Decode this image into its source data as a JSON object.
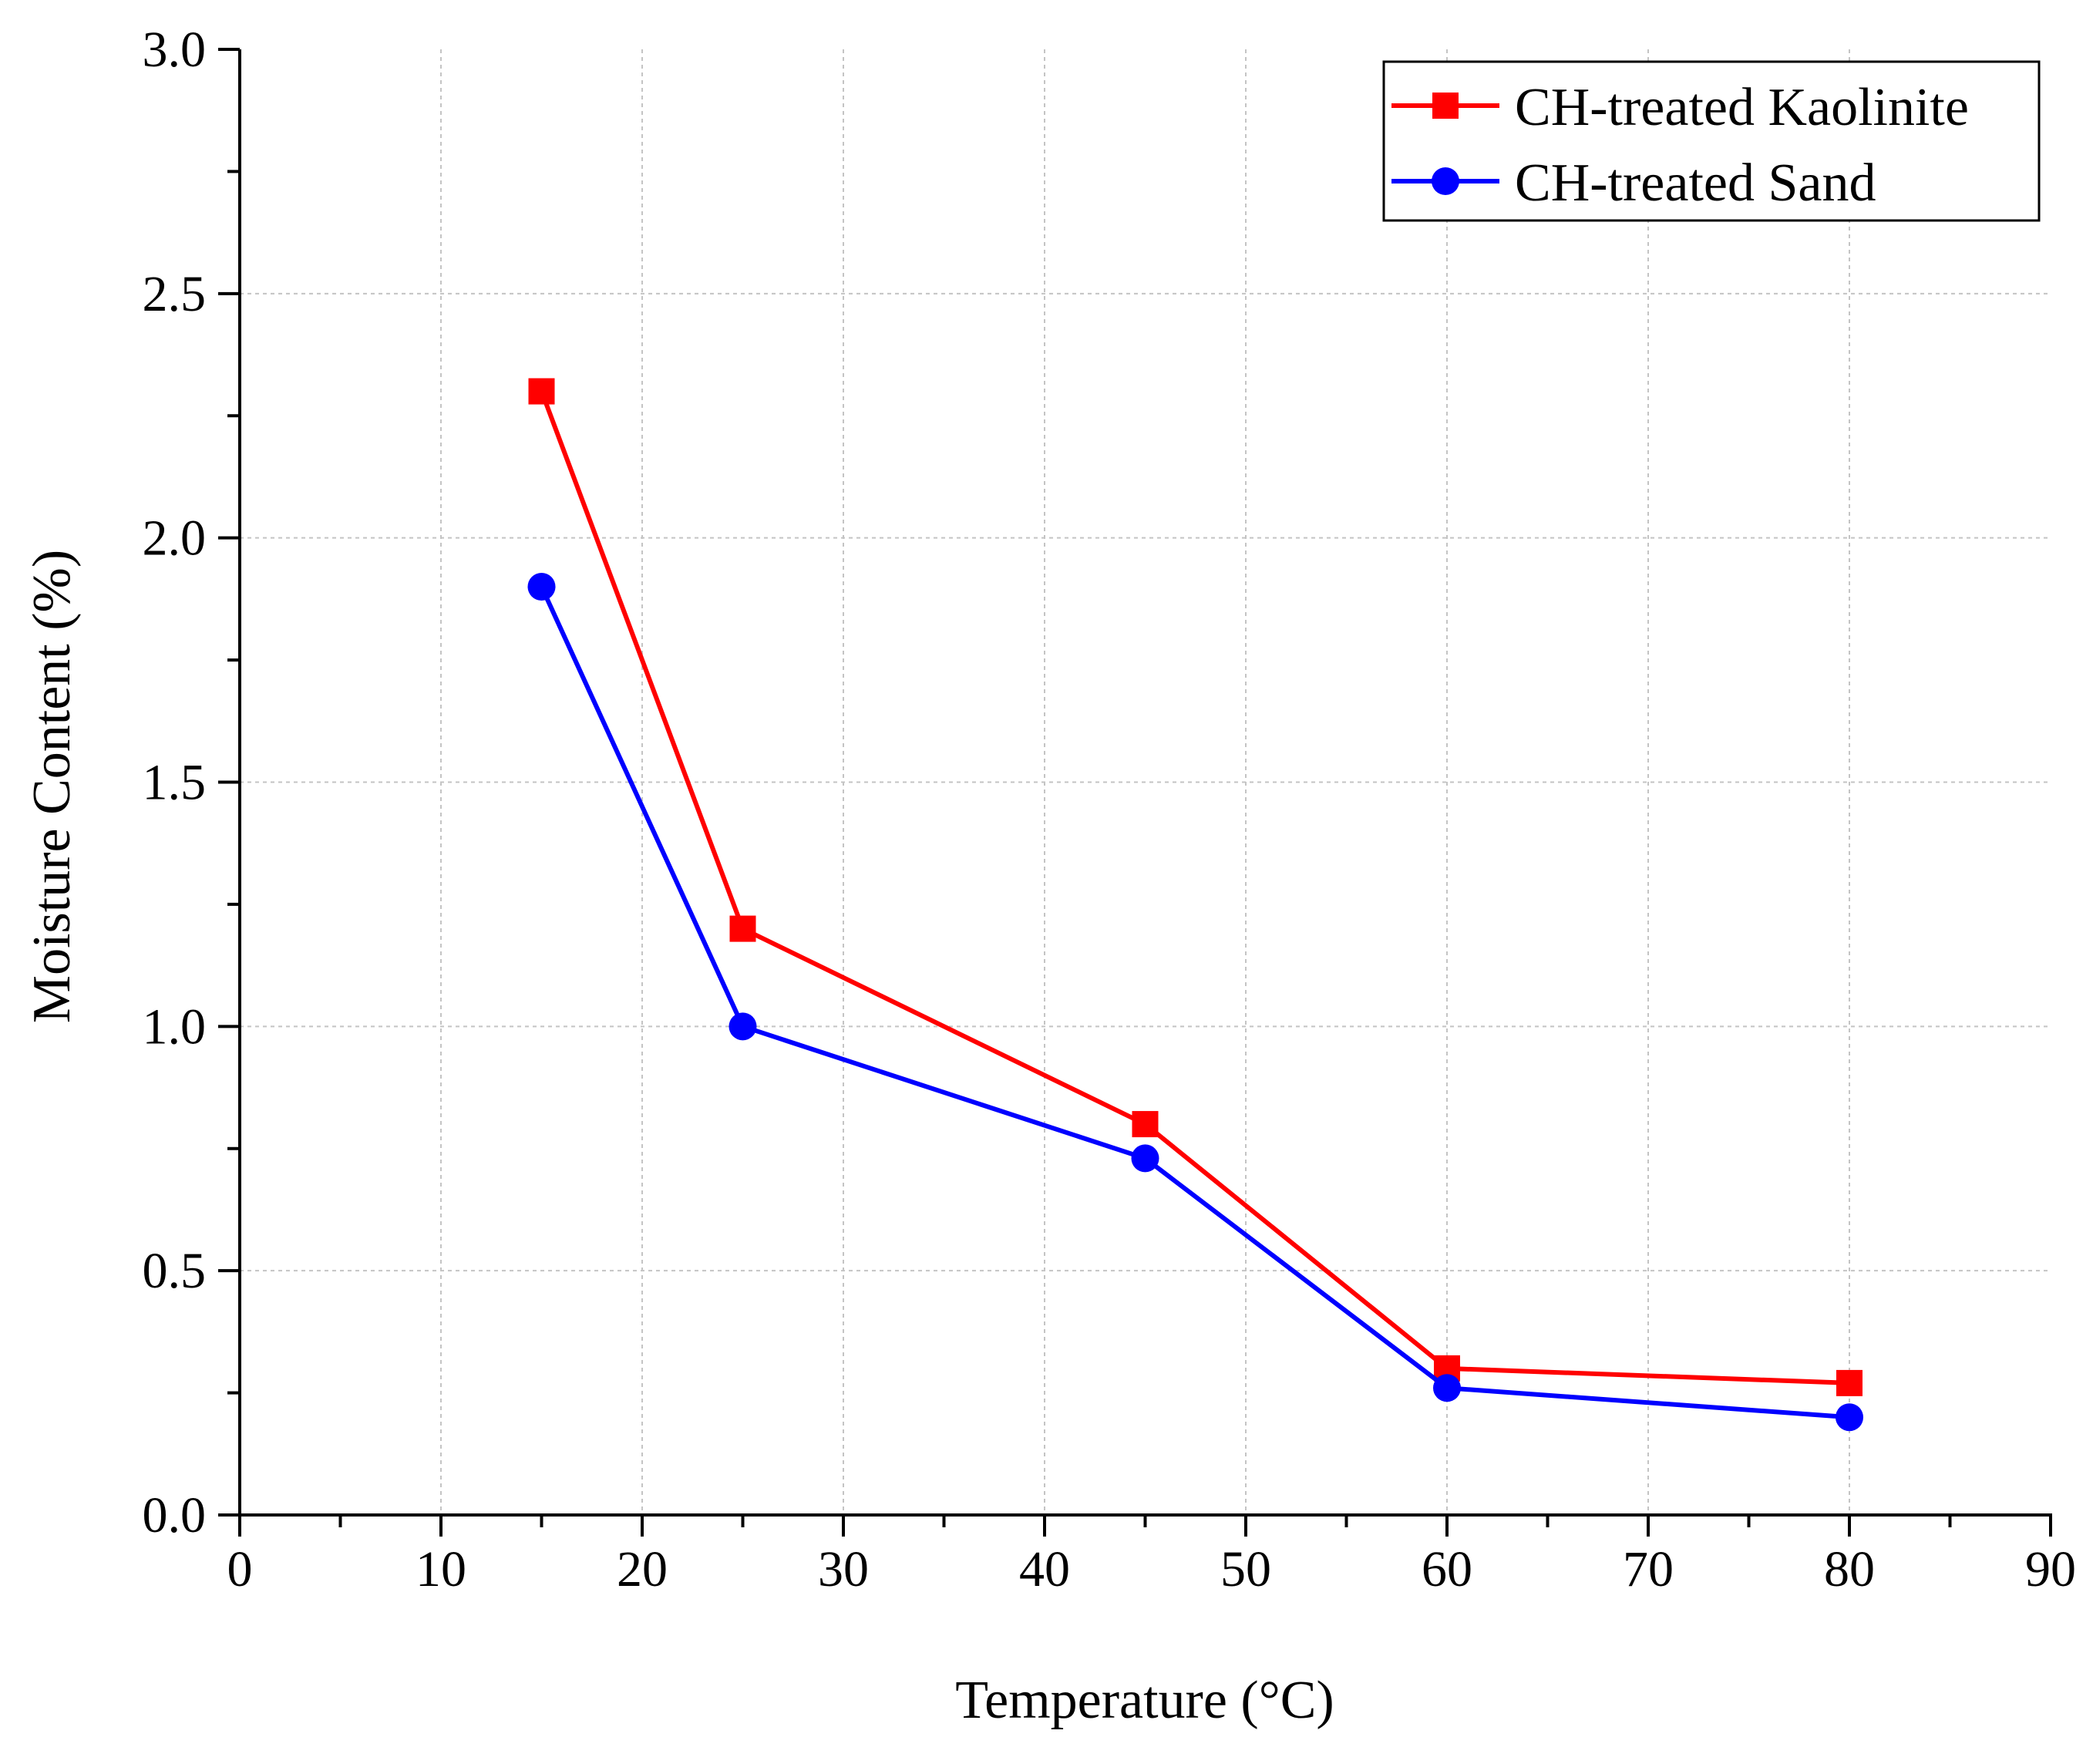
{
  "chart_data": {
    "type": "line",
    "title": "",
    "xlabel": "Temperature (°C)",
    "ylabel": "Moisture Content (%)",
    "xlim": [
      0,
      90
    ],
    "ylim": [
      0.0,
      3.0
    ],
    "x_ticks": [
      0,
      10,
      20,
      30,
      40,
      50,
      60,
      70,
      80,
      90
    ],
    "x_tick_labels": [
      "0",
      "10",
      "20",
      "30",
      "40",
      "50",
      "60",
      "70",
      "80",
      "90"
    ],
    "y_ticks": [
      0.0,
      0.5,
      1.0,
      1.5,
      2.0,
      2.5,
      3.0
    ],
    "y_tick_labels": [
      "0.0",
      "0.5",
      "1.0",
      "1.5",
      "2.0",
      "2.5",
      "3.0"
    ],
    "grid": true,
    "legend_position": "top-right",
    "series": [
      {
        "name": "CH-treated Kaolinite",
        "color": "#ff0000",
        "marker": "square",
        "x": [
          15,
          25,
          45,
          60,
          80
        ],
        "y": [
          2.3,
          1.2,
          0.8,
          0.3,
          0.27
        ]
      },
      {
        "name": "CH-treated Sand",
        "color": "#0000ff",
        "marker": "circle",
        "x": [
          15,
          25,
          45,
          60,
          80
        ],
        "y": [
          1.9,
          1.0,
          0.73,
          0.26,
          0.2
        ]
      }
    ]
  }
}
